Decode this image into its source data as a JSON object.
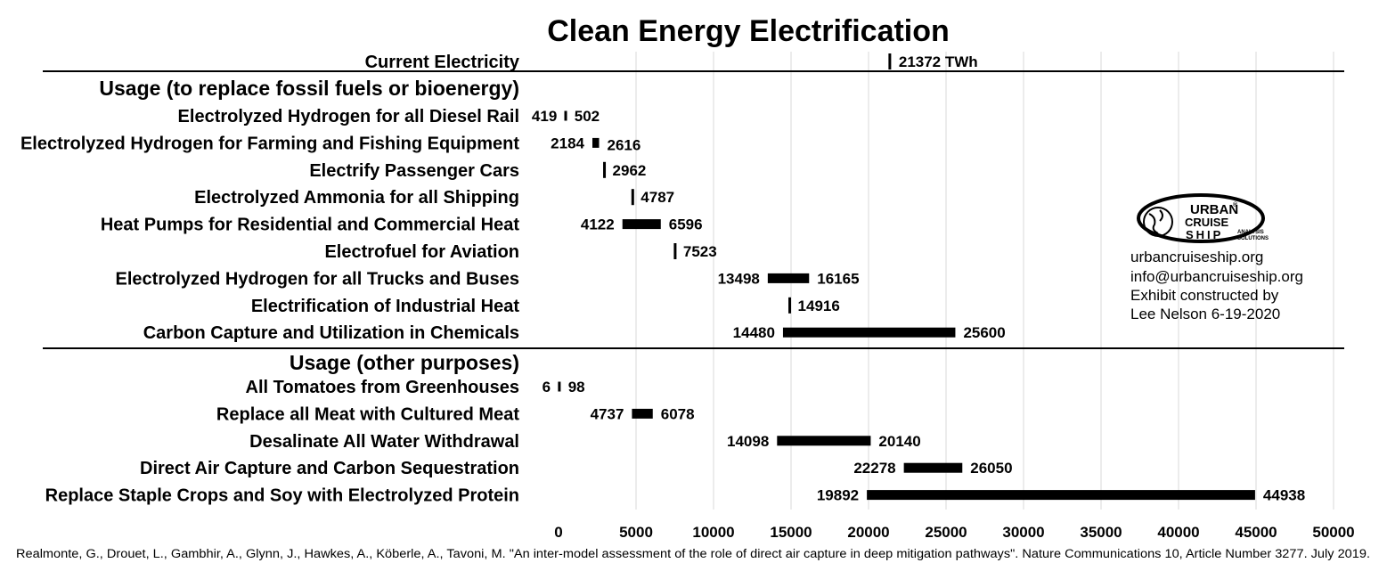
{
  "chart_data": {
    "type": "bar",
    "orientation": "horizontal-range",
    "title": "Clean Energy Electrification",
    "xlim": [
      0,
      50000
    ],
    "x_ticks": [
      0,
      5000,
      10000,
      15000,
      20000,
      25000,
      30000,
      35000,
      40000,
      45000,
      50000
    ],
    "tick_labels": [
      "0",
      "5000",
      "10000",
      "15000",
      "20000",
      "25000",
      "30000",
      "35000",
      "40000",
      "45000",
      "50000"
    ],
    "grid": "vertical",
    "reference": {
      "label": "Current Electricity",
      "value": 21372,
      "value_label": "21372 TWh"
    },
    "sections": [
      {
        "label": "Usage (to replace fossil fuels or bioenergy)",
        "rows": [
          {
            "label": "Electrolyzed Hydrogen for all Diesel Rail",
            "low": 419,
            "high": 502,
            "low_label": "419",
            "high_label": "502"
          },
          {
            "label": "Electrolyzed Hydrogen for Farming and Fishing Equipment",
            "low": 2184,
            "high": 2616,
            "low_label": "2184",
            "high_label": "2616"
          },
          {
            "label": "Electrify Passenger Cars",
            "low": 2962,
            "high": 2962,
            "low_label": "",
            "high_label": "2962"
          },
          {
            "label": "Electrolyzed Ammonia for all Shipping",
            "low": 4787,
            "high": 4787,
            "low_label": "",
            "high_label": "4787"
          },
          {
            "label": "Heat Pumps for Residential and Commercial Heat",
            "low": 4122,
            "high": 6596,
            "low_label": "4122",
            "high_label": "6596"
          },
          {
            "label": "Electrofuel for Aviation",
            "low": 7523,
            "high": 7523,
            "low_label": "",
            "high_label": "7523"
          },
          {
            "label": "Electrolyzed Hydrogen for all Trucks and Buses",
            "low": 13498,
            "high": 16165,
            "low_label": "13498",
            "high_label": "16165"
          },
          {
            "label": "Electrification of Industrial Heat",
            "low": 14916,
            "high": 14916,
            "low_label": "",
            "high_label": "14916"
          },
          {
            "label": "Carbon Capture and Utilization in Chemicals",
            "low": 14480,
            "high": 25600,
            "low_label": "14480",
            "high_label": "25600"
          }
        ]
      },
      {
        "label": "Usage (other purposes)",
        "rows": [
          {
            "label": "All Tomatoes from Greenhouses",
            "low": 6,
            "high": 98,
            "low_label": "6",
            "high_label": "98"
          },
          {
            "label": "Replace all Meat with Cultured Meat",
            "low": 4737,
            "high": 6078,
            "low_label": "4737",
            "high_label": "6078"
          },
          {
            "label": "Desalinate All Water Withdrawal",
            "low": 14098,
            "high": 20140,
            "low_label": "14098",
            "high_label": "20140"
          },
          {
            "label": "Direct Air Capture and Carbon Sequestration",
            "low": 22278,
            "high": 26050,
            "low_label": "22278",
            "high_label": "26050"
          },
          {
            "label": "Replace Staple Crops and Soy with Electrolyzed Protein",
            "low": 19892,
            "high": 44938,
            "low_label": "19892",
            "high_label": "44938"
          }
        ]
      }
    ]
  },
  "logo": {
    "line1": "URBAN",
    "line2": "CRUISE",
    "line3": "SHIP",
    "sub1": "ANALYSIS",
    "sub2": "SOLUTIONS",
    "mark": "®"
  },
  "credits": {
    "website": "urbancruiseship.org",
    "email": "info@urbancruiseship.org",
    "line1": "Exhibit constructed by",
    "line2": "Lee Nelson 6-19-2020"
  },
  "source": "Realmonte, G., Drouet, L., Gambhir, A., Glynn, J., Hawkes, A., Köberle, A., Tavoni, M. \"An inter-model assessment of the role of direct air capture in deep mitigation pathways\". Nature Communications 10, Article Number 3277. July 2019.",
  "colors": {
    "bar": "#000000",
    "grid": "#d9d9d9",
    "divider": "#000000",
    "background": "#ffffff"
  }
}
